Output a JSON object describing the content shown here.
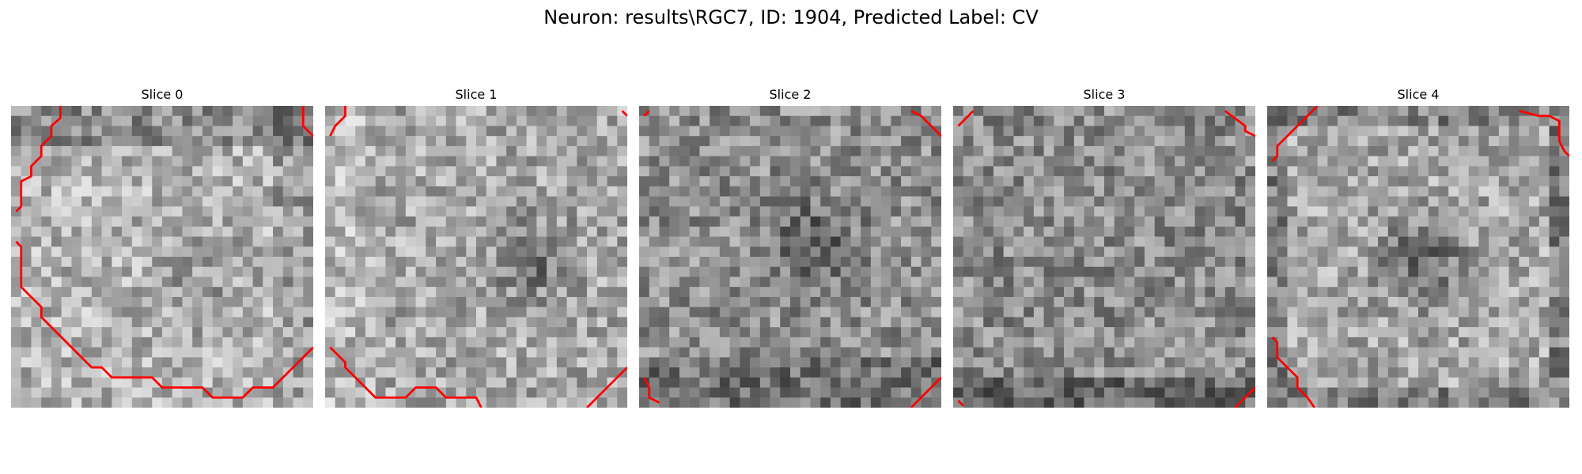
{
  "figure": {
    "title": "Neuron: results\\RGC7, ID: 1904, Predicted Label: CV"
  },
  "panels": [
    {
      "title": "Slice 0"
    },
    {
      "title": "Slice 1"
    },
    {
      "title": "Slice 2"
    },
    {
      "title": "Slice 3"
    },
    {
      "title": "Slice 4"
    }
  ],
  "colors": {
    "background": "#ffffff",
    "contour": "#ff0000"
  },
  "colormap": "gray"
}
